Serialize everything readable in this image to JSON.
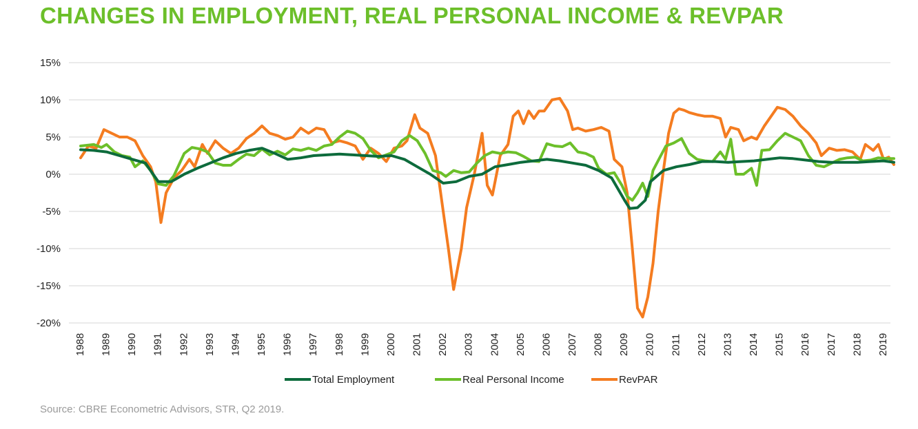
{
  "title": "CHANGES IN EMPLOYMENT, REAL PERSONAL INCOME & REVPAR",
  "source": "Source: CBRE Econometric Advisors, STR, Q2 2019.",
  "chart_data": {
    "type": "line",
    "title": "CHANGES IN EMPLOYMENT, REAL PERSONAL INCOME & REVPAR",
    "xlabel": "",
    "ylabel": "",
    "x_tick_labels": [
      "1988",
      "1989",
      "1990",
      "1991",
      "1992",
      "1993",
      "1994",
      "1995",
      "1996",
      "1997",
      "1998",
      "1999",
      "2000",
      "2001",
      "2002",
      "2003",
      "2004",
      "2005",
      "2006",
      "2007",
      "2008",
      "2009",
      "2010",
      "2011",
      "2012",
      "2013",
      "2014",
      "2015",
      "2016",
      "2017",
      "2018",
      "2019"
    ],
    "y_tick_labels": [
      "15%",
      "10%",
      "5%",
      "0%",
      "-5%",
      "-10%",
      "-15%",
      "-20%"
    ],
    "ylim": [
      -20,
      15
    ],
    "xlim": [
      1988,
      2019.5
    ],
    "grid": true,
    "legend_position": "bottom",
    "series": [
      {
        "name": "Total Employment",
        "color": "#0d6b3c",
        "points": [
          [
            1988,
            3.3
          ],
          [
            1988.5,
            3.2
          ],
          [
            1989,
            3.0
          ],
          [
            1989.5,
            2.5
          ],
          [
            1990,
            2.0
          ],
          [
            1990.5,
            1.5
          ],
          [
            1991,
            -1.0
          ],
          [
            1991.5,
            -1.0
          ],
          [
            1992,
            0.0
          ],
          [
            1992.5,
            0.8
          ],
          [
            1993,
            1.5
          ],
          [
            1993.5,
            2.2
          ],
          [
            1994,
            2.8
          ],
          [
            1994.5,
            3.2
          ],
          [
            1995,
            3.5
          ],
          [
            1995.5,
            2.8
          ],
          [
            1996,
            2.0
          ],
          [
            1996.5,
            2.2
          ],
          [
            1997,
            2.5
          ],
          [
            1997.5,
            2.6
          ],
          [
            1998,
            2.7
          ],
          [
            1998.5,
            2.6
          ],
          [
            1999,
            2.5
          ],
          [
            1999.5,
            2.4
          ],
          [
            2000,
            2.5
          ],
          [
            2000.5,
            2.0
          ],
          [
            2001,
            1.0
          ],
          [
            2001.5,
            0.0
          ],
          [
            2002,
            -1.2
          ],
          [
            2002.5,
            -1.0
          ],
          [
            2003,
            -0.3
          ],
          [
            2003.5,
            0.0
          ],
          [
            2004,
            1.0
          ],
          [
            2004.5,
            1.3
          ],
          [
            2005,
            1.6
          ],
          [
            2005.5,
            1.8
          ],
          [
            2006,
            2.0
          ],
          [
            2006.5,
            1.8
          ],
          [
            2007,
            1.5
          ],
          [
            2007.5,
            1.2
          ],
          [
            2008,
            0.5
          ],
          [
            2008.5,
            -0.5
          ],
          [
            2009,
            -3.5
          ],
          [
            2009.2,
            -4.6
          ],
          [
            2009.5,
            -4.5
          ],
          [
            2009.8,
            -3.5
          ],
          [
            2010,
            -1.0
          ],
          [
            2010.5,
            0.5
          ],
          [
            2011,
            1.0
          ],
          [
            2011.5,
            1.3
          ],
          [
            2012,
            1.7
          ],
          [
            2012.5,
            1.7
          ],
          [
            2013,
            1.6
          ],
          [
            2013.5,
            1.7
          ],
          [
            2014,
            1.8
          ],
          [
            2014.5,
            2.0
          ],
          [
            2015,
            2.2
          ],
          [
            2015.5,
            2.1
          ],
          [
            2016,
            1.9
          ],
          [
            2016.5,
            1.7
          ],
          [
            2017,
            1.6
          ],
          [
            2017.5,
            1.6
          ],
          [
            2018,
            1.6
          ],
          [
            2018.5,
            1.7
          ],
          [
            2019,
            1.8
          ],
          [
            2019.4,
            1.6
          ]
        ]
      },
      {
        "name": "Real Personal Income",
        "color": "#6cbf2a",
        "points": [
          [
            1988,
            3.8
          ],
          [
            1988.5,
            4.0
          ],
          [
            1988.8,
            3.6
          ],
          [
            1989,
            4.0
          ],
          [
            1989.3,
            3.0
          ],
          [
            1989.6,
            2.5
          ],
          [
            1989.9,
            2.3
          ],
          [
            1990.1,
            1.0
          ],
          [
            1990.4,
            1.8
          ],
          [
            1990.7,
            0.5
          ],
          [
            1991,
            -1.3
          ],
          [
            1991.3,
            -1.5
          ],
          [
            1991.6,
            -0.2
          ],
          [
            1992,
            2.8
          ],
          [
            1992.3,
            3.6
          ],
          [
            1992.6,
            3.4
          ],
          [
            1992.9,
            3.0
          ],
          [
            1993.2,
            1.5
          ],
          [
            1993.5,
            1.2
          ],
          [
            1993.8,
            1.2
          ],
          [
            1994.1,
            2.0
          ],
          [
            1994.4,
            2.7
          ],
          [
            1994.7,
            2.5
          ],
          [
            1995,
            3.4
          ],
          [
            1995.3,
            2.6
          ],
          [
            1995.6,
            3.1
          ],
          [
            1995.9,
            2.6
          ],
          [
            1996.2,
            3.4
          ],
          [
            1996.5,
            3.2
          ],
          [
            1996.8,
            3.5
          ],
          [
            1997.1,
            3.2
          ],
          [
            1997.4,
            3.8
          ],
          [
            1997.7,
            4.0
          ],
          [
            1998,
            5.0
          ],
          [
            1998.3,
            5.8
          ],
          [
            1998.6,
            5.5
          ],
          [
            1998.9,
            4.8
          ],
          [
            1999.2,
            3.2
          ],
          [
            1999.5,
            2.2
          ],
          [
            1999.8,
            2.6
          ],
          [
            2000.1,
            3.0
          ],
          [
            2000.4,
            4.5
          ],
          [
            2000.7,
            5.2
          ],
          [
            2001,
            4.5
          ],
          [
            2001.3,
            2.8
          ],
          [
            2001.6,
            0.5
          ],
          [
            2001.9,
            0.2
          ],
          [
            2002.1,
            -0.3
          ],
          [
            2002.4,
            0.5
          ],
          [
            2002.7,
            0.2
          ],
          [
            2003,
            0.3
          ],
          [
            2003.3,
            1.5
          ],
          [
            2003.6,
            2.5
          ],
          [
            2003.9,
            3.0
          ],
          [
            2004.2,
            2.8
          ],
          [
            2004.5,
            3.0
          ],
          [
            2004.8,
            2.9
          ],
          [
            2005.1,
            2.4
          ],
          [
            2005.4,
            1.8
          ],
          [
            2005.7,
            1.7
          ],
          [
            2006,
            4.1
          ],
          [
            2006.3,
            3.8
          ],
          [
            2006.6,
            3.7
          ],
          [
            2006.9,
            4.2
          ],
          [
            2007.2,
            3.0
          ],
          [
            2007.5,
            2.8
          ],
          [
            2007.8,
            2.3
          ],
          [
            2008,
            0.8
          ],
          [
            2008.3,
            0.0
          ],
          [
            2008.6,
            0.2
          ],
          [
            2008.9,
            -1.5
          ],
          [
            2009.1,
            -3.0
          ],
          [
            2009.3,
            -3.5
          ],
          [
            2009.5,
            -2.5
          ],
          [
            2009.7,
            -1.2
          ],
          [
            2009.9,
            -3.0
          ],
          [
            2010.1,
            0.5
          ],
          [
            2010.4,
            2.5
          ],
          [
            2010.6,
            3.8
          ],
          [
            2010.9,
            4.2
          ],
          [
            2011.2,
            4.8
          ],
          [
            2011.5,
            2.8
          ],
          [
            2011.8,
            2.0
          ],
          [
            2012.1,
            1.8
          ],
          [
            2012.4,
            1.7
          ],
          [
            2012.7,
            3.0
          ],
          [
            2012.9,
            2.0
          ],
          [
            2013.1,
            4.7
          ],
          [
            2013.3,
            0.0
          ],
          [
            2013.6,
            0.0
          ],
          [
            2013.9,
            0.8
          ],
          [
            2014.1,
            -1.5
          ],
          [
            2014.3,
            3.2
          ],
          [
            2014.6,
            3.3
          ],
          [
            2014.9,
            4.5
          ],
          [
            2015.2,
            5.5
          ],
          [
            2015.5,
            5.0
          ],
          [
            2015.8,
            4.5
          ],
          [
            2016.1,
            2.5
          ],
          [
            2016.4,
            1.2
          ],
          [
            2016.7,
            1.0
          ],
          [
            2017,
            1.5
          ],
          [
            2017.3,
            2.0
          ],
          [
            2017.6,
            2.2
          ],
          [
            2017.9,
            2.3
          ],
          [
            2018.2,
            1.8
          ],
          [
            2018.5,
            1.9
          ],
          [
            2018.8,
            2.2
          ],
          [
            2019.1,
            2.1
          ],
          [
            2019.4,
            2.1
          ]
        ]
      },
      {
        "name": "RevPAR",
        "color": "#f47c20",
        "points": [
          [
            1988,
            2.2
          ],
          [
            1988.3,
            3.8
          ],
          [
            1988.6,
            3.5
          ],
          [
            1988.9,
            6.0
          ],
          [
            1989.2,
            5.5
          ],
          [
            1989.5,
            5.0
          ],
          [
            1989.8,
            5.0
          ],
          [
            1990.1,
            4.5
          ],
          [
            1990.4,
            2.5
          ],
          [
            1990.7,
            1.0
          ],
          [
            1990.9,
            -1.0
          ],
          [
            1991.1,
            -6.5
          ],
          [
            1991.3,
            -2.5
          ],
          [
            1991.6,
            -0.5
          ],
          [
            1991.9,
            0.5
          ],
          [
            1992.2,
            2.0
          ],
          [
            1992.4,
            1.0
          ],
          [
            1992.7,
            4.0
          ],
          [
            1992.9,
            2.8
          ],
          [
            1993.2,
            4.5
          ],
          [
            1993.5,
            3.5
          ],
          [
            1993.8,
            2.8
          ],
          [
            1994.1,
            3.5
          ],
          [
            1994.4,
            4.8
          ],
          [
            1994.7,
            5.5
          ],
          [
            1995,
            6.5
          ],
          [
            1995.3,
            5.5
          ],
          [
            1995.6,
            5.2
          ],
          [
            1995.9,
            4.7
          ],
          [
            1996.2,
            5.0
          ],
          [
            1996.5,
            6.2
          ],
          [
            1996.8,
            5.5
          ],
          [
            1997.1,
            6.2
          ],
          [
            1997.4,
            6.0
          ],
          [
            1997.7,
            4.2
          ],
          [
            1998,
            4.5
          ],
          [
            1998.3,
            4.2
          ],
          [
            1998.6,
            3.8
          ],
          [
            1998.9,
            2.0
          ],
          [
            1999.2,
            3.5
          ],
          [
            1999.5,
            2.8
          ],
          [
            1999.8,
            1.7
          ],
          [
            2000.1,
            3.5
          ],
          [
            2000.4,
            3.8
          ],
          [
            2000.6,
            4.5
          ],
          [
            2000.9,
            8.0
          ],
          [
            2001.1,
            6.2
          ],
          [
            2001.4,
            5.5
          ],
          [
            2001.7,
            2.5
          ],
          [
            2002,
            -5.0
          ],
          [
            2002.2,
            -10.0
          ],
          [
            2002.4,
            -15.5
          ],
          [
            2002.7,
            -10.0
          ],
          [
            2002.9,
            -4.5
          ],
          [
            2003.2,
            0.0
          ],
          [
            2003.5,
            5.5
          ],
          [
            2003.7,
            -1.5
          ],
          [
            2003.9,
            -2.8
          ],
          [
            2004.2,
            2.5
          ],
          [
            2004.5,
            4.0
          ],
          [
            2004.7,
            7.8
          ],
          [
            2004.9,
            8.5
          ],
          [
            2005.1,
            6.8
          ],
          [
            2005.3,
            8.5
          ],
          [
            2005.5,
            7.5
          ],
          [
            2005.7,
            8.5
          ],
          [
            2005.9,
            8.5
          ],
          [
            2006.2,
            10.0
          ],
          [
            2006.5,
            10.2
          ],
          [
            2006.8,
            8.5
          ],
          [
            2007.0,
            6.0
          ],
          [
            2007.2,
            6.2
          ],
          [
            2007.5,
            5.8
          ],
          [
            2007.8,
            6.0
          ],
          [
            2008.1,
            6.3
          ],
          [
            2008.4,
            5.8
          ],
          [
            2008.6,
            2.0
          ],
          [
            2008.9,
            1.0
          ],
          [
            2009.1,
            -2.5
          ],
          [
            2009.3,
            -10.0
          ],
          [
            2009.5,
            -18.0
          ],
          [
            2009.7,
            -19.2
          ],
          [
            2009.9,
            -16.5
          ],
          [
            2010.1,
            -12.0
          ],
          [
            2010.3,
            -5.0
          ],
          [
            2010.5,
            0.5
          ],
          [
            2010.7,
            5.5
          ],
          [
            2010.9,
            8.2
          ],
          [
            2011.1,
            8.8
          ],
          [
            2011.3,
            8.6
          ],
          [
            2011.5,
            8.3
          ],
          [
            2011.8,
            8.0
          ],
          [
            2012.1,
            7.8
          ],
          [
            2012.4,
            7.8
          ],
          [
            2012.7,
            7.5
          ],
          [
            2012.9,
            5.0
          ],
          [
            2013.1,
            6.3
          ],
          [
            2013.4,
            6.0
          ],
          [
            2013.6,
            4.5
          ],
          [
            2013.9,
            5.0
          ],
          [
            2014.1,
            4.7
          ],
          [
            2014.4,
            6.5
          ],
          [
            2014.7,
            8.0
          ],
          [
            2014.9,
            9.0
          ],
          [
            2015.2,
            8.7
          ],
          [
            2015.5,
            7.8
          ],
          [
            2015.8,
            6.5
          ],
          [
            2016.1,
            5.5
          ],
          [
            2016.4,
            4.2
          ],
          [
            2016.6,
            2.5
          ],
          [
            2016.9,
            3.5
          ],
          [
            2017.2,
            3.2
          ],
          [
            2017.5,
            3.3
          ],
          [
            2017.8,
            3.0
          ],
          [
            2018.1,
            2.0
          ],
          [
            2018.3,
            4.0
          ],
          [
            2018.6,
            3.2
          ],
          [
            2018.8,
            4.0
          ],
          [
            2019.0,
            2.0
          ],
          [
            2019.2,
            2.3
          ],
          [
            2019.4,
            1.3
          ]
        ]
      }
    ]
  }
}
